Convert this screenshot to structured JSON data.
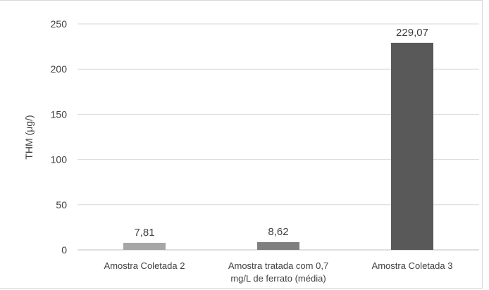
{
  "chart_data": {
    "type": "bar",
    "title": "",
    "xlabel": "",
    "ylabel": "THM (μg/)",
    "ylim": [
      0,
      250
    ],
    "yticks": [
      "0",
      "50",
      "100",
      "150",
      "200",
      "250"
    ],
    "grid": true,
    "categories": [
      [
        "Amostra Coletada 2"
      ],
      [
        "Amostra tratada com 0,7",
        "mg/L de ferrato (média)"
      ],
      [
        "Amostra Coletada 3"
      ]
    ],
    "values": [
      7.81,
      8.62,
      229.07
    ],
    "data_labels": [
      "7,81",
      "8,62",
      "229,07"
    ],
    "colors": [
      "#a6a6a6",
      "#7f7f7f",
      "#595959"
    ],
    "grid_color": "#d9d9d9",
    "axis_color": "#bfbfbf"
  }
}
